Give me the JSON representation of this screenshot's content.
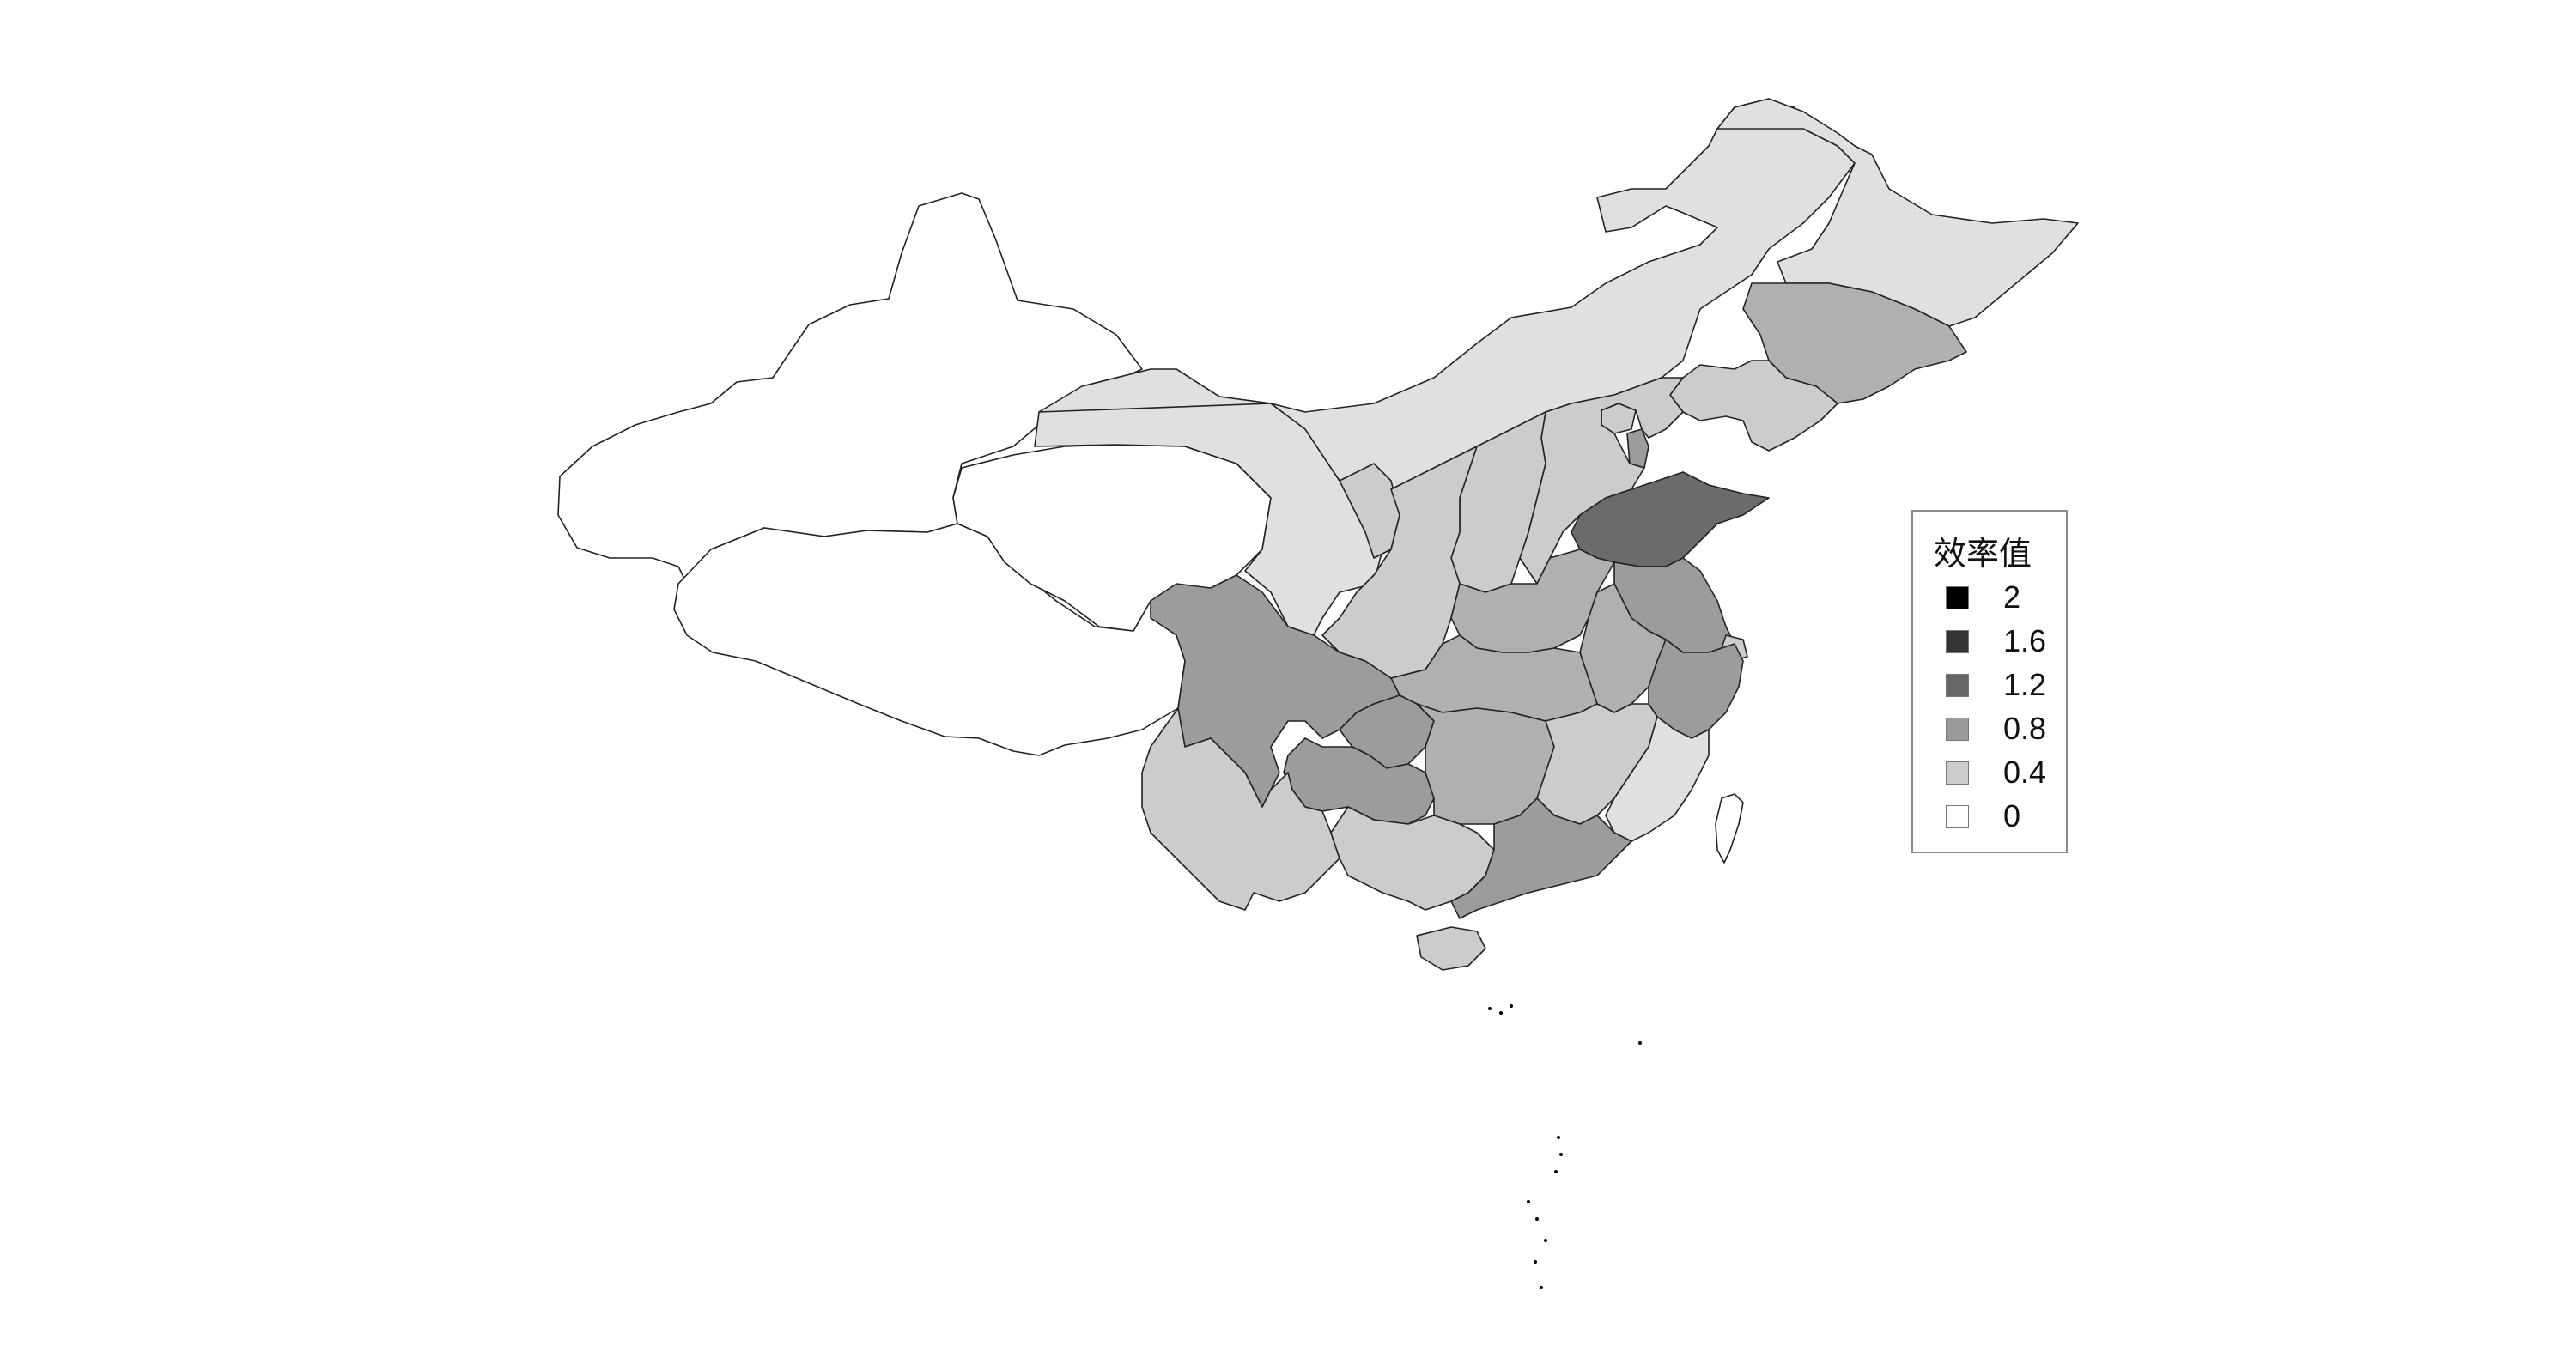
{
  "legend": {
    "title": "效率值",
    "items": [
      {
        "label": "2",
        "color": "#000000"
      },
      {
        "label": "1.6",
        "color": "#333333"
      },
      {
        "label": "1.2",
        "color": "#666666"
      },
      {
        "label": "0.8",
        "color": "#999999"
      },
      {
        "label": "0.4",
        "color": "#cccccc"
      },
      {
        "label": "0",
        "color": "#ffffff"
      }
    ]
  },
  "colors": {
    "level_0": "#ffffff",
    "level_0_2": "#e0e0e0",
    "level_0_4": "#cccccc",
    "level_0_6": "#b0b0b0",
    "level_0_8": "#9c9c9c",
    "level_1_0": "#8a8a8a",
    "level_1_2": "#6b6b6b",
    "border": "#222222"
  },
  "regions": [
    {
      "id": "xinjiang",
      "value": 0
    },
    {
      "id": "tibet",
      "value": 0
    },
    {
      "id": "qinghai",
      "value": 0
    },
    {
      "id": "heilongjiang",
      "value": 0.2
    },
    {
      "id": "jilin",
      "value": 0.6
    },
    {
      "id": "liaoning",
      "value": 0.4
    },
    {
      "id": "inner-mongolia",
      "value": 0.2
    },
    {
      "id": "gansu",
      "value": 0.2
    },
    {
      "id": "ningxia",
      "value": 0.4
    },
    {
      "id": "shaanxi",
      "value": 0.4
    },
    {
      "id": "shanxi",
      "value": 0.4
    },
    {
      "id": "hebei",
      "value": 0.4
    },
    {
      "id": "beijing",
      "value": 0.4
    },
    {
      "id": "tianjin",
      "value": 0.8
    },
    {
      "id": "shandong",
      "value": 1.2
    },
    {
      "id": "henan",
      "value": 0.6
    },
    {
      "id": "jiangsu",
      "value": 0.8
    },
    {
      "id": "anhui",
      "value": 0.6
    },
    {
      "id": "shanghai",
      "value": 0.4
    },
    {
      "id": "zhejiang",
      "value": 0.8
    },
    {
      "id": "hubei",
      "value": 0.6
    },
    {
      "id": "sichuan",
      "value": 0.8
    },
    {
      "id": "chongqing",
      "value": 0.8
    },
    {
      "id": "guizhou",
      "value": 0.8
    },
    {
      "id": "hunan",
      "value": 0.6
    },
    {
      "id": "jiangxi",
      "value": 0.4
    },
    {
      "id": "fujian",
      "value": 0.2
    },
    {
      "id": "yunnan",
      "value": 0.4
    },
    {
      "id": "guangxi",
      "value": 0.4
    },
    {
      "id": "guangdong",
      "value": 0.8
    },
    {
      "id": "hainan",
      "value": 0.4
    },
    {
      "id": "taiwan",
      "value": 0
    }
  ]
}
